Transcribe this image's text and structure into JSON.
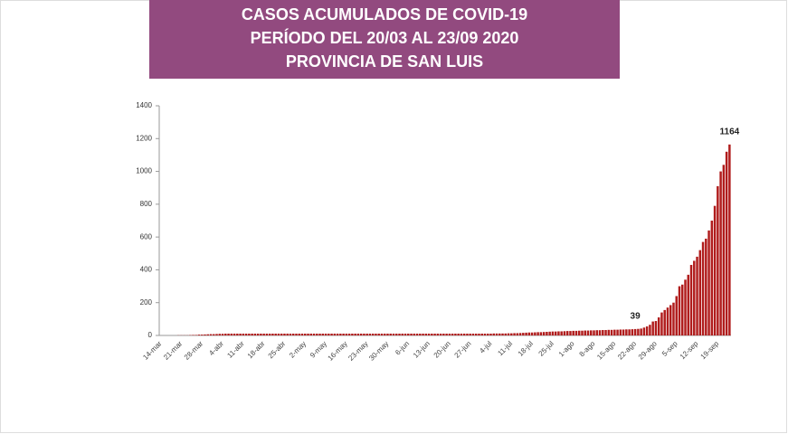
{
  "chart_data": {
    "type": "bar",
    "title_lines": [
      "CASOS ACUMULADOS DE COVID-19",
      "PERÍODO DEL 20/03 AL 23/09 2020",
      "PROVINCIA DE SAN LUIS"
    ],
    "color": "#b01c1c",
    "categories": [
      "14-mar",
      null,
      null,
      null,
      null,
      null,
      null,
      "21-mar",
      null,
      null,
      null,
      null,
      null,
      null,
      "28-mar",
      null,
      null,
      null,
      null,
      null,
      null,
      "4-abr",
      null,
      null,
      null,
      null,
      null,
      null,
      "11-abr",
      null,
      null,
      null,
      null,
      null,
      null,
      "18-abr",
      null,
      null,
      null,
      null,
      null,
      null,
      "25-abr",
      null,
      null,
      null,
      null,
      null,
      null,
      "2-may",
      null,
      null,
      null,
      null,
      null,
      null,
      "9-may",
      null,
      null,
      null,
      null,
      null,
      null,
      "16-may",
      null,
      null,
      null,
      null,
      null,
      null,
      "23-may",
      null,
      null,
      null,
      null,
      null,
      null,
      "30-may",
      null,
      null,
      null,
      null,
      null,
      null,
      "6-jun",
      null,
      null,
      null,
      null,
      null,
      null,
      "13-jun",
      null,
      null,
      null,
      null,
      null,
      null,
      "20-jun",
      null,
      null,
      null,
      null,
      null,
      null,
      "27-jun",
      null,
      null,
      null,
      null,
      null,
      null,
      "4-jul",
      null,
      null,
      null,
      null,
      null,
      null,
      "11-jul",
      null,
      null,
      null,
      null,
      null,
      null,
      "18-jul",
      null,
      null,
      null,
      null,
      null,
      null,
      "25-jul",
      null,
      null,
      null,
      null,
      null,
      null,
      "1-ago",
      null,
      null,
      null,
      null,
      null,
      null,
      "8-ago",
      null,
      null,
      null,
      null,
      null,
      null,
      "15-ago",
      null,
      null,
      null,
      null,
      null,
      null,
      "22-ago",
      null,
      null,
      null,
      null,
      null,
      null,
      "29-ago",
      null,
      null,
      null,
      null,
      null,
      null,
      "5-sep",
      null,
      null,
      null,
      null,
      null,
      null,
      "12-sep",
      null,
      null,
      null,
      null,
      null,
      null,
      "19-sep",
      null,
      null,
      null,
      null
    ],
    "values": [
      null,
      null,
      null,
      null,
      null,
      null,
      1,
      1,
      1,
      1,
      2,
      3,
      3,
      5,
      5,
      6,
      7,
      8,
      8,
      9,
      10,
      10,
      11,
      11,
      11,
      11,
      11,
      11,
      11,
      11,
      11,
      11,
      11,
      11,
      11,
      11,
      11,
      11,
      11,
      11,
      11,
      11,
      11,
      11,
      11,
      11,
      11,
      11,
      11,
      11,
      11,
      11,
      11,
      11,
      11,
      11,
      11,
      11,
      11,
      11,
      11,
      11,
      11,
      11,
      11,
      11,
      11,
      11,
      11,
      11,
      11,
      11,
      11,
      11,
      11,
      11,
      11,
      11,
      11,
      11,
      11,
      11,
      11,
      11,
      11,
      11,
      11,
      11,
      11,
      11,
      11,
      11,
      11,
      11,
      11,
      11,
      11,
      11,
      11,
      11,
      11,
      11,
      11,
      11,
      11,
      11,
      11,
      11,
      11,
      11,
      11,
      11,
      11,
      12,
      12,
      12,
      12,
      12,
      13,
      13,
      14,
      14,
      15,
      16,
      17,
      18,
      18,
      19,
      20,
      20,
      21,
      22,
      23,
      24,
      24,
      25,
      25,
      26,
      27,
      27,
      28,
      28,
      29,
      29,
      30,
      30,
      31,
      31,
      32,
      32,
      33,
      33,
      34,
      34,
      35,
      35,
      36,
      36,
      37,
      37,
      38,
      39,
      40,
      42,
      48,
      55,
      65,
      85,
      88,
      110,
      140,
      155,
      170,
      185,
      200,
      240,
      300,
      310,
      340,
      370,
      430,
      455,
      480,
      520,
      570,
      590,
      640,
      700,
      790,
      910,
      1000,
      1040,
      1120,
      1164
    ],
    "value_labels": [
      null,
      null,
      null,
      null,
      null,
      null,
      null,
      null,
      null,
      null,
      null,
      null,
      null,
      null,
      null,
      null,
      null,
      null,
      null,
      null,
      null,
      null,
      null,
      null,
      null,
      null,
      null,
      null,
      null,
      null,
      null,
      null,
      null,
      null,
      null,
      null,
      null,
      null,
      null,
      null,
      null,
      null,
      null,
      null,
      null,
      null,
      null,
      null,
      null,
      null,
      null,
      null,
      null,
      null,
      null,
      null,
      null,
      null,
      null,
      null,
      null,
      null,
      null,
      null,
      null,
      null,
      null,
      null,
      null,
      null,
      null,
      null,
      null,
      null,
      null,
      null,
      null,
      null,
      null,
      null,
      null,
      null,
      null,
      null,
      null,
      null,
      null,
      null,
      null,
      null,
      null,
      null,
      null,
      null,
      null,
      null,
      null,
      null,
      null,
      null,
      null,
      null,
      null,
      null,
      null,
      null,
      null,
      null,
      null,
      null,
      null,
      null,
      null,
      null,
      null,
      null,
      null,
      null,
      null,
      null,
      null,
      null,
      null,
      null,
      null,
      null,
      null,
      null,
      null,
      null,
      null,
      null,
      null,
      null,
      null,
      null,
      null,
      null,
      null,
      null,
      null,
      null,
      null,
      null,
      null,
      null,
      null,
      null,
      null,
      null,
      null,
      null,
      null,
      null,
      null,
      null,
      null,
      null,
      null,
      null,
      null,
      "39",
      null,
      null,
      null,
      null,
      null,
      null,
      null,
      null,
      null,
      null,
      null,
      null,
      null,
      null,
      null,
      null,
      null,
      null,
      null,
      null,
      null,
      null,
      null,
      null,
      null,
      null,
      null,
      null,
      null,
      null,
      null,
      "1164"
    ],
    "ylim": [
      0,
      1400
    ],
    "yticks": [
      0,
      200,
      400,
      600,
      800,
      1000,
      1200,
      1400
    ],
    "grid": false
  }
}
